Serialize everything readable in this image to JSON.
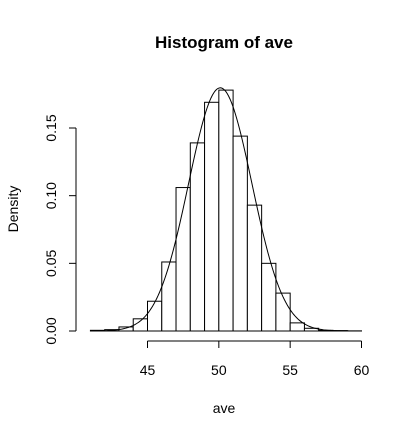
{
  "chart_data": {
    "type": "bar",
    "title": "Histogram of ave",
    "xlabel": "ave",
    "ylabel": "Density",
    "xlim": [
      41,
      60
    ],
    "ylim": [
      0,
      0.18
    ],
    "x_ticks": [
      45,
      50,
      55,
      60
    ],
    "x_tick_labels": [
      "45",
      "50",
      "55",
      "60"
    ],
    "y_ticks": [
      0.0,
      0.05,
      0.1,
      0.15
    ],
    "y_tick_labels": [
      "0.00",
      "0.05",
      "0.10",
      "0.15"
    ],
    "bin_width": 1,
    "bin_starts": [
      41,
      42,
      43,
      44,
      45,
      46,
      47,
      48,
      49,
      50,
      51,
      52,
      53,
      54,
      55,
      56,
      57,
      58,
      59
    ],
    "values": [
      0.0005,
      0.001,
      0.003,
      0.009,
      0.022,
      0.051,
      0.106,
      0.139,
      0.169,
      0.178,
      0.144,
      0.093,
      0.05,
      0.028,
      0.006,
      0.002,
      0.0005,
      0.0003,
      0.0001
    ],
    "curve": {
      "type": "normal-density",
      "mean": 50.1,
      "sd": 2.22,
      "x_range": [
        41,
        60
      ]
    },
    "grid": false,
    "legend": "none"
  }
}
